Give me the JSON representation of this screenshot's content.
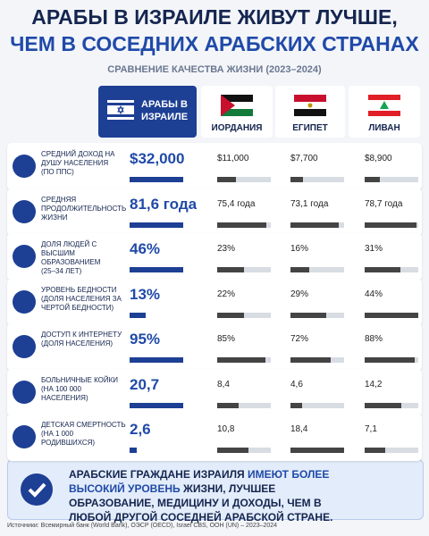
{
  "header": {
    "title_line1": "АРАБЫ В ИЗРАИЛЕ ЖИВУТ ЛУЧШЕ,",
    "title_line2": "ЧЕМ В СОСЕДНИХ АРАБСКИХ СТРАНАХ",
    "subtitle": "СРАВНЕНИЕ КАЧЕСТВА ЖИЗНИ (2023–2024)"
  },
  "columns": [
    "АРАБЫ В ИЗРАИЛЕ",
    "ИОРДАНИЯ",
    "ЕГИПЕТ",
    "ЛИВАН"
  ],
  "rows": [
    {
      "label": "СРЕДНИЙ ДОХОД НА ДУШУ НАСЕЛЕНИЯ",
      "note": "(ПО ППС)",
      "cells": [
        {
          "value": 32000,
          "label": "$32,000"
        },
        {
          "value": 11000,
          "label": "$11,000"
        },
        {
          "value": 7700,
          "label": "$7,700"
        },
        {
          "value": 8900,
          "label": "$8,900"
        }
      ]
    },
    {
      "label": "СРЕДНЯЯ ПРОДОЛЖИТЕЛЬНОСТЬ ЖИЗНИ",
      "note": null,
      "cells": [
        {
          "value": 81.6,
          "label": "81,6 года"
        },
        {
          "value": 75.4,
          "label": "75,4 года"
        },
        {
          "value": 73.1,
          "label": "73,1 года"
        },
        {
          "value": 78.7,
          "label": "78,7 года"
        }
      ]
    },
    {
      "label": "ДОЛЯ ЛЮДЕЙ С ВЫСШИМ ОБРАЗОВАНИЕМ",
      "note": "(25–34 ЛЕТ)",
      "cells": [
        {
          "value": 46,
          "label": "46%"
        },
        {
          "value": 23,
          "label": "23%"
        },
        {
          "value": 16,
          "label": "16%"
        },
        {
          "value": 31,
          "label": "31%"
        }
      ]
    },
    {
      "label": "УРОВЕНЬ БЕДНОСТИ",
      "note": "(ДОЛЯ НАСЕЛЕНИЯ ЗА ЧЕРТОЙ БЕДНОСТИ)",
      "cells": [
        {
          "value": 13,
          "label": "13%"
        },
        {
          "value": 22,
          "label": "22%"
        },
        {
          "value": 29,
          "label": "29%"
        },
        {
          "value": 44,
          "label": "44%"
        }
      ]
    },
    {
      "label": "ДОСТУП К ИНТЕРНЕТУ",
      "note": "(ДОЛЯ НАСЕЛЕНИЯ)",
      "cells": [
        {
          "value": 95,
          "label": "95%"
        },
        {
          "value": 85,
          "label": "85%"
        },
        {
          "value": 72,
          "label": "72%"
        },
        {
          "value": 88,
          "label": "88%"
        }
      ]
    },
    {
      "label": "БОЛЬНИЧНЫЕ КОЙКИ",
      "note": "(НА 100 000 НАСЕЛЕНИЯ)",
      "cells": [
        {
          "value": 20.7,
          "label": "20,7"
        },
        {
          "value": 8.4,
          "label": "8,4"
        },
        {
          "value": 4.6,
          "label": "4,6"
        },
        {
          "value": 14.2,
          "label": "14,2"
        }
      ]
    },
    {
      "label": "ДЕТСКАЯ СМЕРТНОСТЬ",
      "note": "(НА 1 000 РОДИВШИХСЯ)",
      "cells": [
        {
          "value": 2.6,
          "label": "2,6"
        },
        {
          "value": 10.8,
          "label": "10,8"
        },
        {
          "value": 18.4,
          "label": "18,4"
        },
        {
          "value": 7.1,
          "label": "7,1"
        }
      ]
    }
  ],
  "summary": {
    "text_start": "АРАБСКИЕ ГРАЖДАНЕ ИЗРАИЛЯ",
    "highlight": "ИМЕЮТ БОЛЕЕ ВЫСОКИЙ УРОВЕНЬ",
    "text_end": "ЖИЗНИ, ЛУЧШЕЕ ОБРАЗОВАНИЕ, МЕДИЦИНУ И ДОХОДЫ, ЧЕМ В ЛЮБОЙ ДРУГОЙ СОСЕДНЕЙ АРАБСКОЙ СТРАНЕ."
  },
  "sources": "Источники: Всемирный банк (World Bank), ОЭСР (OECD), Israel CBS, ООН (UN) – 2023–2024"
}
